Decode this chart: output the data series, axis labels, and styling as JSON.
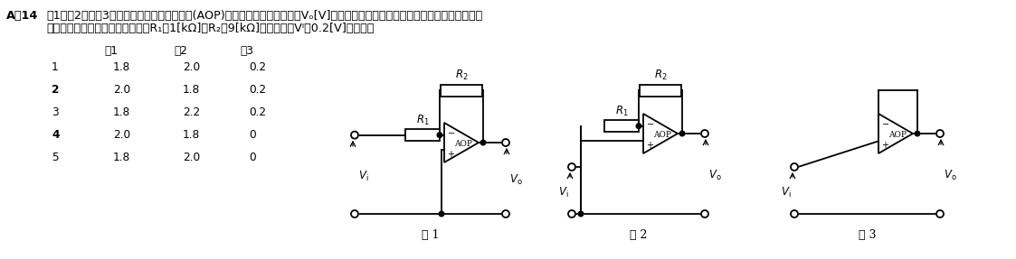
{
  "title_bold": "A－14",
  "title_rest1": "図1、図2及び図3に示す理想的な演算増幅器(AOP)を用いた回路の出力電圧Vₒ[V]の大きさの値の組合せとして、正しいものを下の",
  "title_line2": "　　番号から選べ。ただし、抗抗R₁＝1[kΩ]、R₂＝9[kΩ]、入力電圧Vᴵを0.2[V]とする。",
  "header": [
    "図1",
    "図2",
    "図3"
  ],
  "rows": [
    [
      "1",
      "1.8",
      "2.0",
      "0.2"
    ],
    [
      "2",
      "2.0",
      "1.8",
      "0.2"
    ],
    [
      "3",
      "1.8",
      "2.2",
      "0.2"
    ],
    [
      "4",
      "2.0",
      "1.8",
      "0"
    ],
    [
      "5",
      "1.8",
      "2.0",
      "0"
    ]
  ],
  "row_bold": [
    false,
    true,
    false,
    true,
    false
  ],
  "fig_labels": [
    "図 1",
    "図 2",
    "図 3"
  ]
}
